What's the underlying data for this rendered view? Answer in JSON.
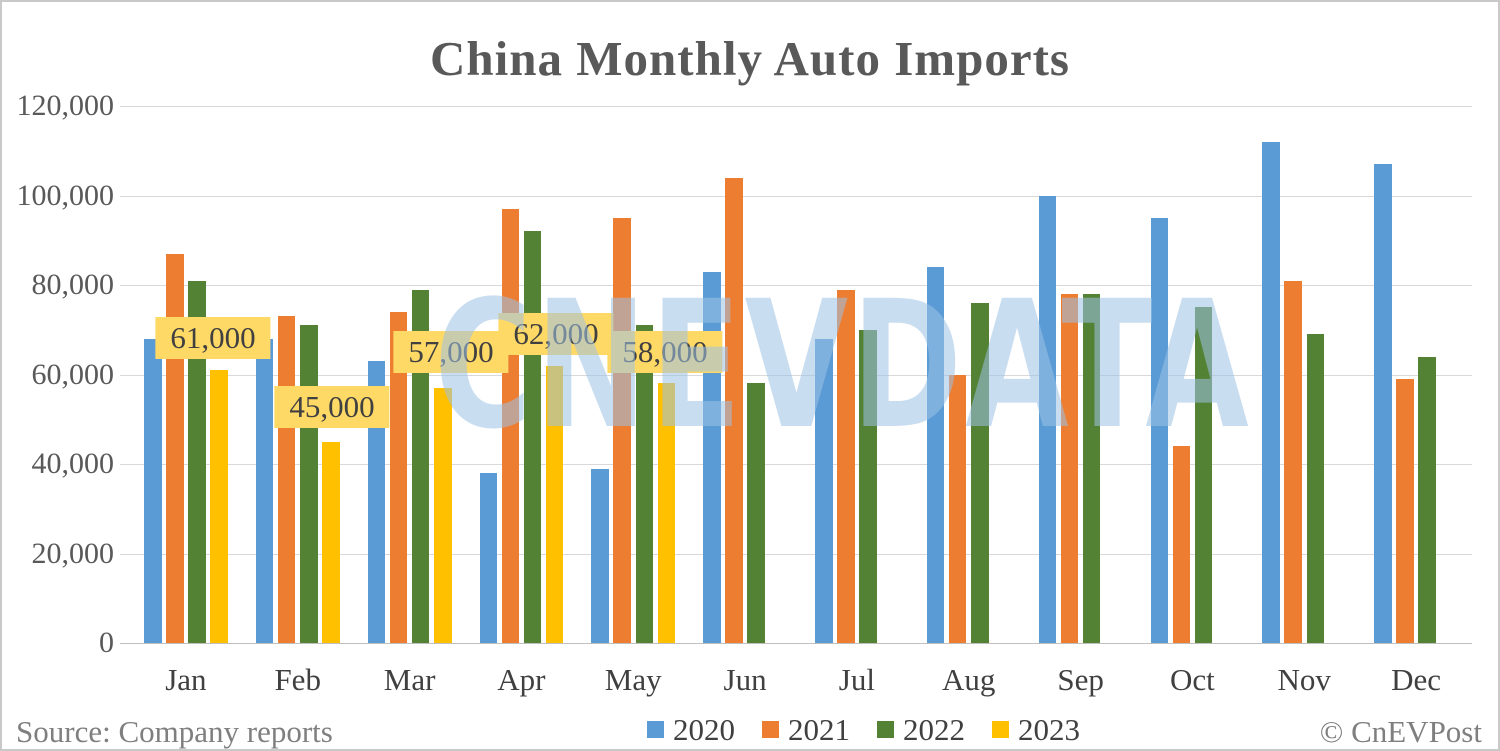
{
  "title": "China Monthly Auto Imports",
  "watermark": "CNEVDATA",
  "footer": {
    "source": "Source: Company reports",
    "credit": "© CnEVPost"
  },
  "colors": {
    "series_2020": "#5B9BD5",
    "series_2021": "#ED7D31",
    "series_2022": "#548235",
    "series_2023": "#FFC000",
    "gridline": "#D9D9D9",
    "annotation_bg": "#FFD966",
    "annotation_text": "#404040",
    "watermark_blue": "#9DC3E6",
    "title_text": "#595959"
  },
  "chart_data": {
    "type": "bar",
    "title": "China Monthly Auto Imports",
    "categories": [
      "Jan",
      "Feb",
      "Mar",
      "Apr",
      "May",
      "Jun",
      "Jul",
      "Aug",
      "Sep",
      "Oct",
      "Nov",
      "Dec"
    ],
    "series": [
      {
        "name": "2020",
        "color": "#5B9BD5",
        "values": [
          68000,
          68000,
          63000,
          38000,
          39000,
          83000,
          68000,
          84000,
          100000,
          95000,
          112000,
          107000
        ]
      },
      {
        "name": "2021",
        "color": "#ED7D31",
        "values": [
          87000,
          73000,
          74000,
          97000,
          95000,
          104000,
          79000,
          60000,
          78000,
          44000,
          81000,
          59000
        ]
      },
      {
        "name": "2022",
        "color": "#548235",
        "values": [
          81000,
          71000,
          79000,
          92000,
          71000,
          58000,
          70000,
          76000,
          78000,
          75000,
          69000,
          64000
        ]
      },
      {
        "name": "2023",
        "color": "#FFC000",
        "values": [
          61000,
          45000,
          57000,
          62000,
          58000,
          null,
          null,
          null,
          null,
          null,
          null,
          null
        ]
      }
    ],
    "ylim": [
      0,
      120000
    ],
    "ytick_labels": [
      "120,000",
      "100,000",
      "80,000",
      "60,000",
      "40,000",
      "20,000",
      "0"
    ],
    "grid": "horizontal",
    "legend_position": "bottom",
    "annotations": [
      {
        "text": "61,000",
        "month": "Jan",
        "series": "2023"
      },
      {
        "text": "45,000",
        "month": "Feb",
        "series": "2023"
      },
      {
        "text": "57,000",
        "month": "Mar",
        "series": "2023"
      },
      {
        "text": "62,000",
        "month": "Apr",
        "series": "2023"
      },
      {
        "text": "58,000",
        "month": "May",
        "series": "2023"
      }
    ]
  }
}
